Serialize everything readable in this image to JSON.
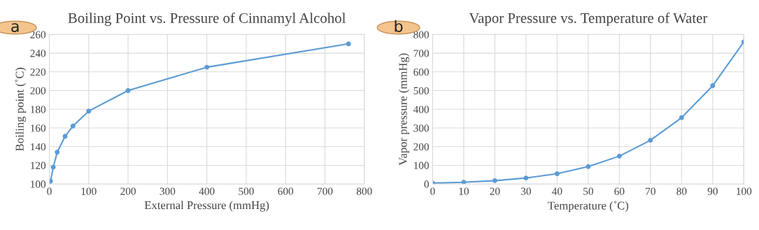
{
  "chart_data": [
    {
      "type": "line",
      "title": "Boiling Point vs. Pressure of Cinnamyl Alcohol",
      "xlabel": "External Pressure (mmHg)",
      "ylabel": "Boiling point (˚C)",
      "annotations": [
        "a"
      ],
      "x": [
        3,
        10,
        20,
        40,
        60,
        100,
        200,
        400,
        760
      ],
      "series": [
        {
          "color": "#5b9bd5",
          "values": [
            103,
            118,
            134,
            151,
            162,
            178,
            200,
            225,
            250
          ]
        }
      ],
      "xlim": [
        0,
        800
      ],
      "xticks": [
        0,
        100,
        200,
        300,
        400,
        500,
        600,
        700,
        800
      ],
      "ylim": [
        100,
        260
      ],
      "yticks": [
        100,
        120,
        140,
        160,
        180,
        200,
        220,
        240,
        260
      ],
      "grid": true,
      "marker": "circle",
      "line_style": "solid"
    },
    {
      "type": "line",
      "title": "Vapor Pressure vs. Temperature of Water",
      "xlabel": "Temperature (˚C)",
      "ylabel": "Vapor pressure (mmHg)",
      "annotations": [
        "b"
      ],
      "x": [
        0,
        10,
        20,
        30,
        40,
        50,
        60,
        70,
        80,
        90,
        100
      ],
      "series": [
        {
          "color": "#5b9bd5",
          "values": [
            5,
            9,
            18,
            32,
            55,
            93,
            149,
            234,
            355,
            526,
            760
          ]
        }
      ],
      "xlim": [
        0,
        100
      ],
      "xticks": [
        0,
        10,
        20,
        30,
        40,
        50,
        60,
        70,
        80,
        90,
        100
      ],
      "ylim": [
        0,
        800
      ],
      "yticks": [
        0,
        100,
        200,
        300,
        400,
        500,
        600,
        700,
        800
      ],
      "grid": true,
      "marker": "circle",
      "line_style": "solid"
    }
  ]
}
